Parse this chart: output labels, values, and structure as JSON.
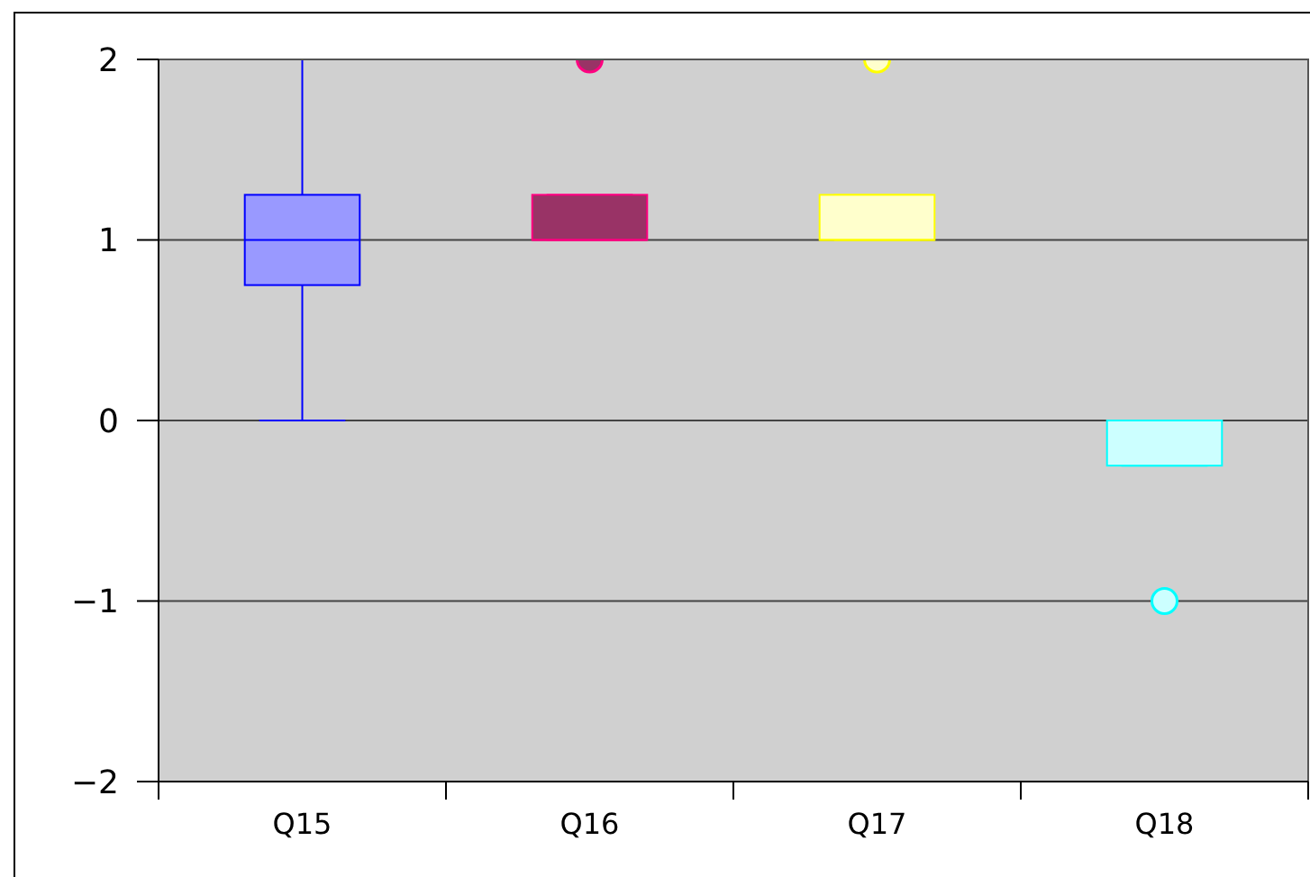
{
  "chart_data": {
    "type": "box",
    "categories": [
      "Q15",
      "Q16",
      "Q17",
      "Q18"
    ],
    "boxes": [
      {
        "low": 0,
        "q1": 0.75,
        "median": 1,
        "q3": 1.25,
        "high": 2
      },
      {
        "low": 1,
        "q1": 1,
        "median": 1,
        "q3": 1.25,
        "high": 1.25,
        "outliers": [
          2
        ]
      },
      {
        "low": 1,
        "q1": 1,
        "median": 1,
        "q3": 1.25,
        "high": 1.25,
        "outliers": [
          2
        ]
      },
      {
        "low": -0.25,
        "q1": -0.25,
        "median": 0,
        "q3": 0,
        "high": 0,
        "outliers": [
          -1
        ]
      }
    ],
    "colors": [
      "#9999ff",
      "#993366",
      "#ffffcc",
      "#ccffff"
    ],
    "ylim": [
      -2,
      2
    ],
    "yticks": [
      {
        "value": -2,
        "label": "−2"
      },
      {
        "value": -1,
        "label": "−1"
      },
      0,
      1,
      2
    ],
    "grid": "y"
  }
}
